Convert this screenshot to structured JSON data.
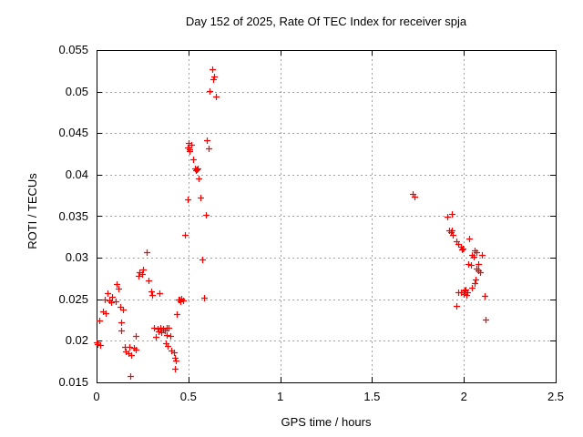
{
  "title": "Day 152 of 2025, Rate Of TEC Index for receiver spja",
  "chart_data": {
    "type": "scatter",
    "title": "Day 152 of 2025, Rate Of TEC Index for receiver spja",
    "xlabel": "GPS time / hours",
    "ylabel": "ROTI / TECUs",
    "xlim": [
      0,
      2.5
    ],
    "ylim": [
      0.015,
      0.055
    ],
    "xticks": {
      "values": [
        0,
        0.5,
        1,
        1.5,
        2,
        2.5
      ],
      "labels": [
        "0",
        "0.5",
        "1",
        "1.5",
        "2",
        "2.5"
      ]
    },
    "yticks": {
      "values": [
        0.015,
        0.02,
        0.025,
        0.03,
        0.035,
        0.04,
        0.045,
        0.05,
        0.055
      ],
      "labels": [
        "0.015",
        "0.02",
        "0.025",
        "0.03",
        "0.035",
        "0.04",
        "0.045",
        "0.05",
        "0.055"
      ]
    },
    "grid": true,
    "legend_position": "none",
    "marker": "plus",
    "marker_color": "#ff0000",
    "grid_color": "#a0a0a0",
    "axis_color": "#000000",
    "background": "#ffffff",
    "series": [
      {
        "name": "ROTI",
        "points": [
          [
            0.0,
            0.0198
          ],
          [
            0.005,
            0.0196
          ],
          [
            0.02,
            0.0195
          ],
          [
            0.015,
            0.0224
          ],
          [
            0.035,
            0.0235
          ],
          [
            0.05,
            0.0233
          ],
          [
            0.045,
            0.025
          ],
          [
            0.06,
            0.0257
          ],
          [
            0.069,
            0.0249
          ],
          [
            0.079,
            0.0246
          ],
          [
            0.084,
            0.0253
          ],
          [
            0.104,
            0.0248
          ],
          [
            0.109,
            0.0268
          ],
          [
            0.119,
            0.0263
          ],
          [
            0.129,
            0.0241
          ],
          [
            0.144,
            0.0238
          ],
          [
            0.134,
            0.0222
          ],
          [
            0.134,
            0.0213
          ],
          [
            0.154,
            0.0193
          ],
          [
            0.179,
            0.0193
          ],
          [
            0.203,
            0.0192
          ],
          [
            0.159,
            0.0187
          ],
          [
            0.174,
            0.0185
          ],
          [
            0.189,
            0.0183
          ],
          [
            0.213,
            0.0189
          ],
          [
            0.213,
            0.0206
          ],
          [
            0.184,
            0.0158
          ],
          [
            0.227,
            0.0278
          ],
          [
            0.235,
            0.0283
          ],
          [
            0.248,
            0.028
          ],
          [
            0.254,
            0.0286
          ],
          [
            0.273,
            0.0307
          ],
          [
            0.283,
            0.0273
          ],
          [
            0.298,
            0.026
          ],
          [
            0.303,
            0.0255
          ],
          [
            0.342,
            0.0257
          ],
          [
            0.314,
            0.0216
          ],
          [
            0.331,
            0.0215
          ],
          [
            0.347,
            0.0216
          ],
          [
            0.364,
            0.0215
          ],
          [
            0.38,
            0.0216
          ],
          [
            0.392,
            0.0216
          ],
          [
            0.371,
            0.0212
          ],
          [
            0.354,
            0.021
          ],
          [
            0.337,
            0.0211
          ],
          [
            0.383,
            0.0207
          ],
          [
            0.4,
            0.0206
          ],
          [
            0.321,
            0.0205
          ],
          [
            0.375,
            0.0197
          ],
          [
            0.387,
            0.0194
          ],
          [
            0.408,
            0.0188
          ],
          [
            0.42,
            0.0186
          ],
          [
            0.425,
            0.018
          ],
          [
            0.433,
            0.0176
          ],
          [
            0.425,
            0.0166
          ],
          [
            0.438,
            0.0232
          ],
          [
            0.446,
            0.025
          ],
          [
            0.453,
            0.025
          ],
          [
            0.463,
            0.0251
          ],
          [
            0.47,
            0.0249
          ],
          [
            0.458,
            0.0247
          ],
          [
            0.483,
            0.0328
          ],
          [
            0.494,
            0.037
          ],
          [
            0.496,
            0.0433
          ],
          [
            0.5,
            0.0438
          ],
          [
            0.504,
            0.0428
          ],
          [
            0.508,
            0.0431
          ],
          [
            0.516,
            0.0436
          ],
          [
            0.526,
            0.0419
          ],
          [
            0.536,
            0.0408
          ],
          [
            0.541,
            0.0405
          ],
          [
            0.546,
            0.0406
          ],
          [
            0.552,
            0.0407
          ],
          [
            0.554,
            0.0396
          ],
          [
            0.566,
            0.0372
          ],
          [
            0.577,
            0.0298
          ],
          [
            0.587,
            0.0252
          ],
          [
            0.595,
            0.0352
          ],
          [
            0.602,
            0.0442
          ],
          [
            0.612,
            0.0432
          ],
          [
            0.615,
            0.0501
          ],
          [
            0.628,
            0.0527
          ],
          [
            0.635,
            0.0515
          ],
          [
            0.64,
            0.0518
          ],
          [
            0.651,
            0.0494
          ],
          [
            1.72,
            0.0377
          ],
          [
            1.731,
            0.0374
          ],
          [
            1.911,
            0.0349
          ],
          [
            1.934,
            0.0353
          ],
          [
            1.921,
            0.0333
          ],
          [
            1.928,
            0.0331
          ],
          [
            1.934,
            0.0333
          ],
          [
            1.941,
            0.0328
          ],
          [
            1.958,
            0.032
          ],
          [
            1.971,
            0.0317
          ],
          [
            1.984,
            0.0313
          ],
          [
            1.988,
            0.031
          ],
          [
            1.996,
            0.0311
          ],
          [
            2.029,
            0.0323
          ],
          [
            2.057,
            0.0309
          ],
          [
            2.067,
            0.0307
          ],
          [
            2.046,
            0.0303
          ],
          [
            2.054,
            0.0301
          ],
          [
            2.1,
            0.0303
          ],
          [
            2.025,
            0.0293
          ],
          [
            2.037,
            0.0291
          ],
          [
            2.078,
            0.0292
          ],
          [
            2.067,
            0.0287
          ],
          [
            2.078,
            0.0285
          ],
          [
            2.087,
            0.0283
          ],
          [
            2.062,
            0.0274
          ],
          [
            2.057,
            0.0269
          ],
          [
            2.042,
            0.0264
          ],
          [
            1.968,
            0.0258
          ],
          [
            1.984,
            0.0258
          ],
          [
            2.003,
            0.0261
          ],
          [
            2.011,
            0.0262
          ],
          [
            2.004,
            0.0259
          ],
          [
            2.017,
            0.0258
          ],
          [
            2.001,
            0.0256
          ],
          [
            2.012,
            0.0255
          ],
          [
            2.115,
            0.0254
          ],
          [
            1.958,
            0.0242
          ],
          [
            2.12,
            0.0226
          ]
        ]
      }
    ]
  }
}
